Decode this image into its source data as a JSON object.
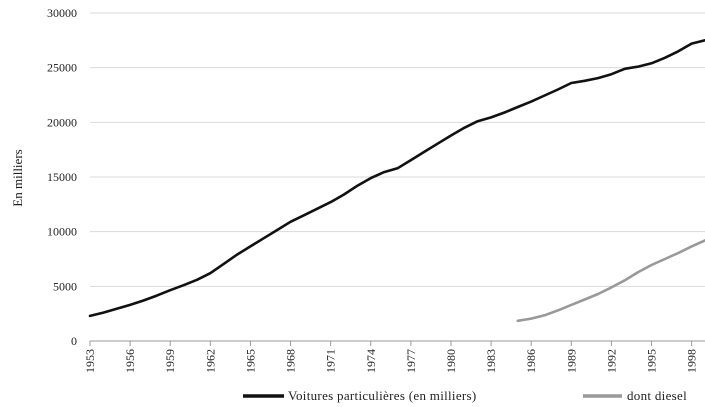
{
  "chart_data": {
    "type": "line",
    "title": "",
    "xlabel": "",
    "ylabel": "En milliers",
    "ylim": [
      0,
      30000
    ],
    "y_ticks": [
      0,
      5000,
      10000,
      15000,
      20000,
      25000,
      30000
    ],
    "x_range": [
      1953,
      1999
    ],
    "x_ticks": [
      "1953",
      "1956",
      "1959",
      "1962",
      "1965",
      "1968",
      "1971",
      "1974",
      "1977",
      "1980",
      "1983",
      "1986",
      "1989",
      "1992",
      "1995",
      "1998"
    ],
    "grid": "horizontal",
    "legend_position": "bottom",
    "series": [
      {
        "name": "Voitures particulières (en milliers)",
        "color": "#111111",
        "x": [
          1953,
          1954,
          1955,
          1956,
          1957,
          1958,
          1959,
          1960,
          1961,
          1962,
          1963,
          1964,
          1965,
          1966,
          1967,
          1968,
          1969,
          1970,
          1971,
          1972,
          1973,
          1974,
          1975,
          1976,
          1977,
          1978,
          1979,
          1980,
          1981,
          1982,
          1983,
          1984,
          1985,
          1986,
          1987,
          1988,
          1989,
          1990,
          1991,
          1992,
          1993,
          1994,
          1995,
          1996,
          1997,
          1998,
          1999
        ],
        "values": [
          2300,
          2600,
          2950,
          3300,
          3700,
          4150,
          4650,
          5100,
          5600,
          6200,
          7050,
          7900,
          8650,
          9400,
          10150,
          10900,
          11500,
          12100,
          12700,
          13400,
          14200,
          14900,
          15450,
          15800,
          16550,
          17300,
          18050,
          18800,
          19500,
          20100,
          20450,
          20900,
          21400,
          21900,
          22450,
          23000,
          23600,
          23800,
          24050,
          24400,
          24900,
          25100,
          25400,
          25900,
          26500,
          27200,
          27500
        ]
      },
      {
        "name": "dont diesel",
        "color": "#999999",
        "x": [
          1985,
          1986,
          1987,
          1988,
          1989,
          1990,
          1991,
          1992,
          1993,
          1994,
          1995,
          1996,
          1997,
          1998,
          1999
        ],
        "values": [
          1850,
          2050,
          2350,
          2800,
          3300,
          3800,
          4300,
          4900,
          5550,
          6300,
          6950,
          7500,
          8050,
          8650,
          9200
        ]
      }
    ]
  }
}
